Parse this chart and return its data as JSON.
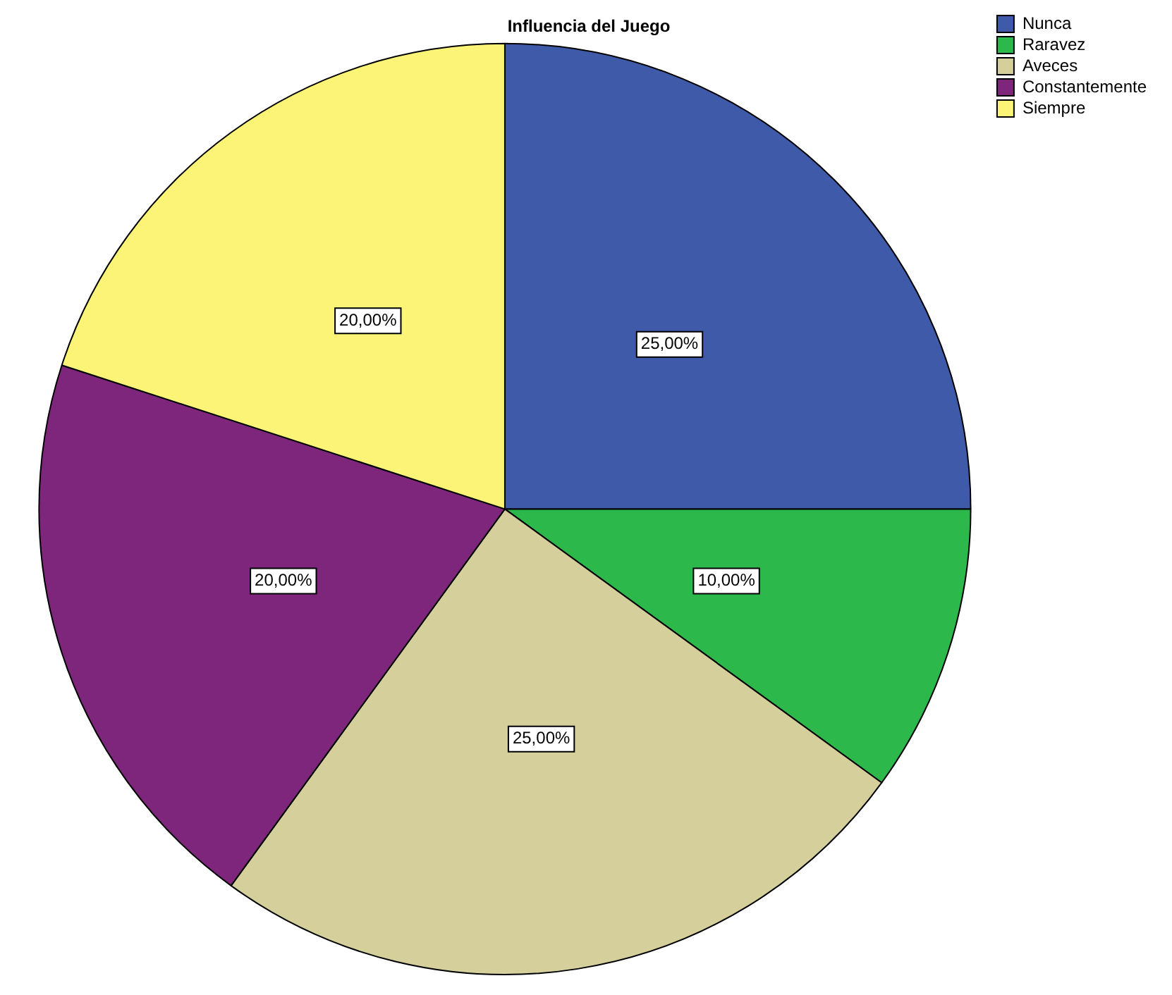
{
  "chart_data": {
    "type": "pie",
    "title": "Influencia del Juego",
    "categories": [
      "Nunca",
      "Raravez",
      "Aveces",
      "Constantemente",
      "Siempre"
    ],
    "values": [
      25,
      10,
      25,
      20,
      20
    ],
    "colors": [
      "#3f5aa9",
      "#2db84b",
      "#d4cf9b",
      "#7d267b",
      "#fbf477"
    ],
    "value_labels": [
      "25,00%",
      "10,00%",
      "25,00%",
      "20,00%",
      "20,00%"
    ],
    "legend": "top right"
  }
}
